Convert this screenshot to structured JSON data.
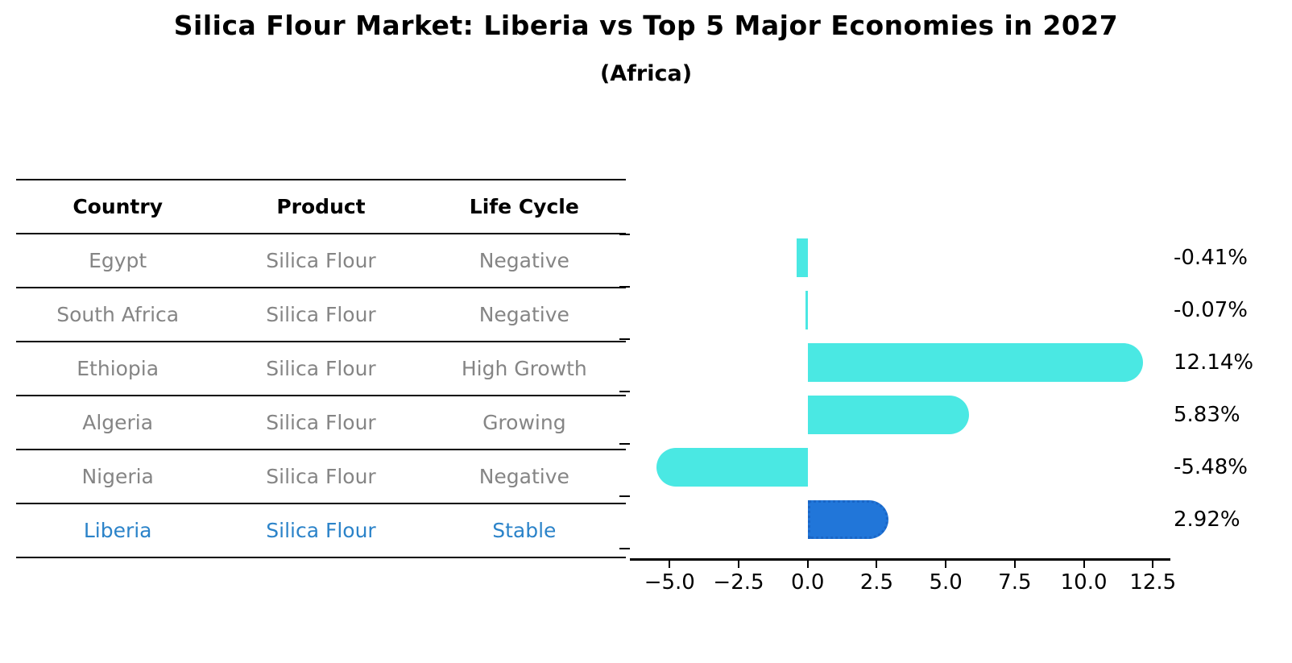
{
  "title": "Silica Flour Market: Liberia vs Top 5 Major Economies in 2027",
  "subtitle": "(Africa)",
  "table": {
    "headers": [
      "Country",
      "Product",
      "Life Cycle"
    ],
    "rows": [
      {
        "country": "Egypt",
        "product": "Silica Flour",
        "life_cycle": "Negative",
        "highlight": false
      },
      {
        "country": "South Africa",
        "product": "Silica Flour",
        "life_cycle": "Negative",
        "highlight": false
      },
      {
        "country": "Ethiopia",
        "product": "Silica Flour",
        "life_cycle": "High Growth",
        "highlight": false
      },
      {
        "country": "Algeria",
        "product": "Silica Flour",
        "life_cycle": "Growing",
        "highlight": false
      },
      {
        "country": "Nigeria",
        "product": "Silica Flour",
        "life_cycle": "Negative",
        "highlight": false
      },
      {
        "country": "Liberia",
        "product": "Silica Flour",
        "life_cycle": "Stable",
        "highlight": true
      }
    ]
  },
  "chart_data": {
    "type": "bar",
    "orientation": "horizontal",
    "title": "Silica Flour Market: Liberia vs Top 5 Major Economies in 2027 (Africa)",
    "categories": [
      "Egypt",
      "South Africa",
      "Ethiopia",
      "Algeria",
      "Nigeria",
      "Liberia"
    ],
    "values": [
      -0.41,
      -0.07,
      12.14,
      5.83,
      -5.48,
      2.92
    ],
    "value_labels": [
      "-0.41%",
      "-0.07%",
      "12.14%",
      "5.83%",
      "-5.48%",
      "2.92%"
    ],
    "unit": "%",
    "xticks": [
      -5.0,
      -2.5,
      0.0,
      2.5,
      5.0,
      7.5,
      10.0,
      12.5
    ],
    "xtick_labels": [
      "−5.0",
      "−2.5",
      "0.0",
      "2.5",
      "5.0",
      "7.5",
      "10.0",
      "12.5"
    ],
    "xlim": [
      -6.35,
      12.9
    ],
    "grid": false,
    "legend": false,
    "highlight_index": 5,
    "colors": {
      "default_bar": "#4ae8e3",
      "highlight_bar": "#2176d9",
      "highlight_border": "#1a66c6",
      "highlight_text": "#2b83c9",
      "row_text": "#858585",
      "axis_text": "#000000"
    }
  }
}
